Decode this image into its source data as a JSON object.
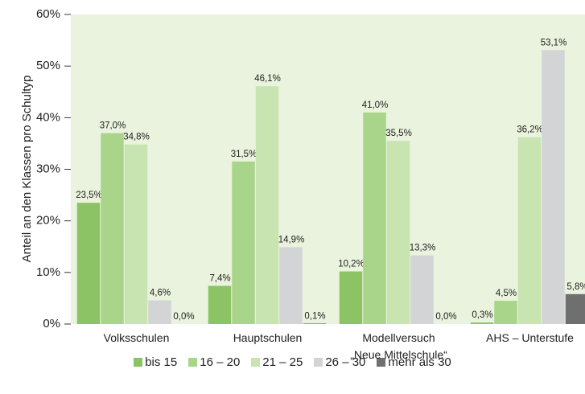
{
  "chart_data": {
    "type": "bar",
    "y_label": "Anteil an den Klassen pro Schultyp",
    "categories": [
      "Volksschulen",
      "Hauptschulen",
      "Modellversuch\n„Neue Mittelschule“",
      "AHS – Unterstufe"
    ],
    "series": [
      {
        "name": "bis 15",
        "color": "#8cc465",
        "values": [
          23.5,
          7.4,
          10.2,
          0.3
        ],
        "value_labels": [
          "23,5%",
          "7,4%",
          "10,2%",
          "0,3%"
        ]
      },
      {
        "name": "16 – 20",
        "color": "#a9d58a",
        "values": [
          37.0,
          31.5,
          41.0,
          4.5
        ],
        "value_labels": [
          "37,0%",
          "31,5%",
          "41,0%",
          "4,5%"
        ]
      },
      {
        "name": "21 – 25",
        "color": "#c8e4b0",
        "values": [
          34.8,
          46.1,
          35.5,
          36.2
        ],
        "value_labels": [
          "34,8%",
          "46,1%",
          "35,5%",
          "36,2%"
        ]
      },
      {
        "name": "26 – 30",
        "color": "#d3d4d6",
        "values": [
          4.6,
          14.9,
          13.3,
          53.1
        ],
        "value_labels": [
          "4,6%",
          "14,9%",
          "13,3%",
          "53,1%"
        ]
      },
      {
        "name": "mehr als 30",
        "color": "#6f6f6f",
        "values": [
          0.0,
          0.1,
          0.0,
          5.8
        ],
        "value_labels": [
          "0,0%",
          "0,1%",
          "0,0%",
          "5,8%"
        ]
      }
    ],
    "ylim": [
      0,
      60
    ],
    "yticks": [
      {
        "value": 0,
        "label": "0%"
      },
      {
        "value": 10,
        "label": "10%"
      },
      {
        "value": 20,
        "label": "20%"
      },
      {
        "value": 30,
        "label": "30%"
      },
      {
        "value": 40,
        "label": "40%"
      },
      {
        "value": 50,
        "label": "50%"
      },
      {
        "value": 60,
        "label": "60%"
      }
    ],
    "plot_background": "#eaf3dd"
  }
}
